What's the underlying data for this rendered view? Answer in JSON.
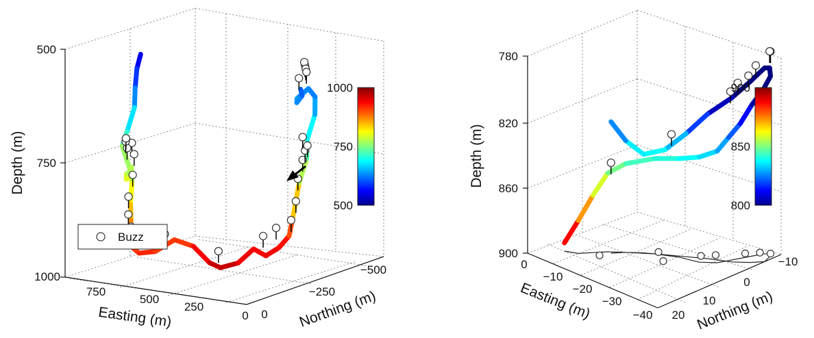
{
  "chart_data": [
    {
      "type": "line",
      "projection": "3d",
      "xlabel": "Easting (m)",
      "ylabel": "Northing (m)",
      "zlabel": "Depth (m)",
      "xticks": [
        "750",
        "500",
        "250",
        "0"
      ],
      "yticks": [
        "0",
        "−250",
        "−500"
      ],
      "zticks": [
        "500",
        "750",
        "1000"
      ],
      "xlim": [
        0,
        900
      ],
      "ylim": [
        -500,
        0
      ],
      "zlim": [
        500,
        1000
      ],
      "z_reversed": true,
      "grid": true,
      "colorbar": {
        "min": 500,
        "max": 1000,
        "ticks": [
          "1000",
          "750",
          "500"
        ],
        "colormap": "jet"
      },
      "legend": {
        "label": "Buzz",
        "marker": "open-circle",
        "placement": "bottom-left"
      },
      "annotation": "arrow",
      "series": [
        {
          "points": [
            [
              770,
              -180,
              540
            ],
            [
              775,
              -170,
              570
            ],
            [
              770,
              -160,
              610
            ],
            [
              760,
              -150,
              650
            ],
            [
              770,
              -130,
              700
            ],
            [
              780,
              -120,
              730
            ],
            [
              820,
              -180,
              800
            ],
            [
              840,
              -200,
              820
            ],
            [
              800,
              -150,
              810
            ],
            [
              760,
              -120,
              790
            ],
            [
              720,
              -100,
              780
            ],
            [
              680,
              -80,
              760
            ],
            [
              650,
              -60,
              790
            ],
            [
              630,
              -40,
              830
            ],
            [
              600,
              -20,
              860
            ],
            [
              580,
              0,
              880
            ],
            [
              560,
              20,
              900
            ],
            [
              520,
              10,
              920
            ],
            [
              480,
              -20,
              920
            ],
            [
              440,
              -60,
              900
            ],
            [
              400,
              -100,
              920
            ],
            [
              360,
              -130,
              960
            ],
            [
              320,
              -140,
              970
            ],
            [
              260,
              -160,
              960
            ],
            [
              210,
              -180,
              930
            ],
            [
              190,
              -210,
              950
            ],
            [
              180,
              -250,
              940
            ],
            [
              170,
              -280,
              920
            ],
            [
              140,
              -270,
              880
            ],
            [
              120,
              -280,
              800
            ],
            [
              110,
              -300,
              750
            ],
            [
              120,
              -310,
              710
            ],
            [
              110,
              -330,
              660
            ],
            [
              150,
              -360,
              630
            ],
            [
              210,
              -380,
              620
            ],
            [
              240,
              -360,
              640
            ],
            [
              200,
              -330,
              640
            ],
            [
              160,
              -320,
              620
            ],
            [
              140,
              -300,
              600
            ]
          ],
          "buzz_points": [
            [
              800,
              -170,
              760
            ],
            [
              810,
              -160,
              770
            ],
            [
              790,
              -140,
              750
            ],
            [
              775,
              -130,
              740
            ],
            [
              680,
              -90,
              760
            ],
            [
              660,
              -70,
              800
            ],
            [
              640,
              -40,
              840
            ],
            [
              600,
              -10,
              870
            ],
            [
              560,
              10,
              890
            ],
            [
              470,
              -30,
              900
            ],
            [
              460,
              -40,
              910
            ],
            [
              330,
              -140,
              960
            ],
            [
              190,
              -200,
              930
            ],
            [
              180,
              -240,
              920
            ],
            [
              160,
              -280,
              910
            ],
            [
              150,
              -290,
              870
            ],
            [
              140,
              -290,
              820
            ],
            [
              130,
              -300,
              780
            ],
            [
              125,
              -305,
              760
            ],
            [
              120,
              -310,
              750
            ],
            [
              130,
              -300,
              730
            ],
            [
              200,
              -360,
              590
            ],
            [
              190,
              -350,
              580
            ],
            [
              210,
              -370,
              600
            ],
            [
              220,
              -380,
              610
            ],
            [
              230,
              -360,
              620
            ]
          ]
        }
      ]
    },
    {
      "type": "line",
      "projection": "3d",
      "xlabel": "Easting (m)",
      "ylabel": "Northing (m)",
      "zlabel": "Depth (m)",
      "xticks": [
        "0",
        "−10",
        "−20",
        "−30",
        "−40"
      ],
      "yticks": [
        "20",
        "10",
        "0",
        "−10"
      ],
      "zticks": [
        "780",
        "820",
        "860",
        "900"
      ],
      "xlim": [
        -40,
        0
      ],
      "ylim": [
        -10,
        20
      ],
      "zlim": [
        780,
        900
      ],
      "z_reversed": true,
      "grid": true,
      "colorbar": {
        "min": 800,
        "max": 900,
        "ticks": [
          "900",
          "850",
          "800"
        ],
        "colormap": "jet"
      },
      "series": [
        {
          "points": [
            [
              -5,
              15,
              895
            ],
            [
              -8,
              14,
              880
            ],
            [
              -10,
              12,
              865
            ],
            [
              -12,
              10,
              852
            ],
            [
              -15,
              8,
              846
            ],
            [
              -20,
              5,
              842
            ],
            [
              -25,
              3,
              840
            ],
            [
              -30,
              2,
              836
            ],
            [
              -33,
              0,
              832
            ],
            [
              -34,
              -2,
              825
            ],
            [
              -35,
              -4,
              818
            ],
            [
              -36,
              -6,
              808
            ],
            [
              -37,
              -8,
              800
            ],
            [
              -38,
              -9,
              792
            ],
            [
              -39,
              -8,
              785
            ],
            [
              -40,
              -6,
              782
            ],
            [
              -38,
              -4,
              790
            ],
            [
              -35,
              -2,
              800
            ],
            [
              -30,
              0,
              812
            ],
            [
              -26,
              2,
              825
            ],
            [
              -22,
              4,
              836
            ],
            [
              -18,
              6,
              840
            ],
            [
              -15,
              8,
              832
            ],
            [
              -13,
              10,
              820
            ]
          ],
          "buzz_points": [
            [
              -13,
              10,
              852
            ],
            [
              -24,
              4,
              832
            ],
            [
              -38,
              -9,
              784
            ],
            [
              -39,
              -8,
              782
            ],
            [
              -36,
              -7,
              792
            ],
            [
              -35,
              -6,
              798
            ],
            [
              -33,
              -5,
              803
            ],
            [
              -32,
              -4,
              808
            ]
          ],
          "shadow_buzz_points": [
            [
              -12,
              12,
              900
            ],
            [
              -20,
              4,
              900
            ],
            [
              -28,
              0,
              900
            ],
            [
              -34,
              -6,
              900
            ],
            [
              -36,
              -8,
              900
            ],
            [
              -38,
              -9,
              900
            ],
            [
              -30,
              -2,
              900
            ],
            [
              -24,
              6,
              900
            ]
          ]
        }
      ]
    }
  ]
}
